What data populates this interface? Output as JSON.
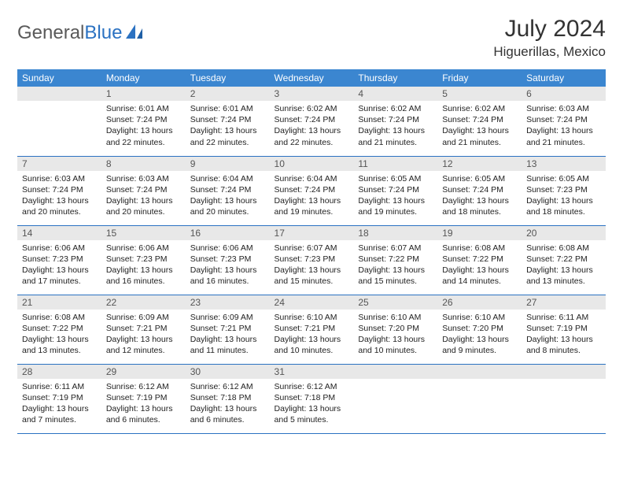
{
  "logo": {
    "word1": "General",
    "word2": "Blue"
  },
  "title": "July 2024",
  "location": "Higuerillas, Mexico",
  "day_headers": [
    "Sunday",
    "Monday",
    "Tuesday",
    "Wednesday",
    "Thursday",
    "Friday",
    "Saturday"
  ],
  "colors": {
    "header_bg": "#3b86d0",
    "header_fg": "#ffffff",
    "daynum_bg": "#e8e8e8",
    "row_border": "#2b72c2",
    "logo_gray": "#5a5a5a",
    "logo_blue": "#2b72c2"
  },
  "weeks": [
    [
      {
        "n": "",
        "sunrise": "",
        "sunset": "",
        "daylight": ""
      },
      {
        "n": "1",
        "sunrise": "Sunrise: 6:01 AM",
        "sunset": "Sunset: 7:24 PM",
        "daylight": "Daylight: 13 hours and 22 minutes."
      },
      {
        "n": "2",
        "sunrise": "Sunrise: 6:01 AM",
        "sunset": "Sunset: 7:24 PM",
        "daylight": "Daylight: 13 hours and 22 minutes."
      },
      {
        "n": "3",
        "sunrise": "Sunrise: 6:02 AM",
        "sunset": "Sunset: 7:24 PM",
        "daylight": "Daylight: 13 hours and 22 minutes."
      },
      {
        "n": "4",
        "sunrise": "Sunrise: 6:02 AM",
        "sunset": "Sunset: 7:24 PM",
        "daylight": "Daylight: 13 hours and 21 minutes."
      },
      {
        "n": "5",
        "sunrise": "Sunrise: 6:02 AM",
        "sunset": "Sunset: 7:24 PM",
        "daylight": "Daylight: 13 hours and 21 minutes."
      },
      {
        "n": "6",
        "sunrise": "Sunrise: 6:03 AM",
        "sunset": "Sunset: 7:24 PM",
        "daylight": "Daylight: 13 hours and 21 minutes."
      }
    ],
    [
      {
        "n": "7",
        "sunrise": "Sunrise: 6:03 AM",
        "sunset": "Sunset: 7:24 PM",
        "daylight": "Daylight: 13 hours and 20 minutes."
      },
      {
        "n": "8",
        "sunrise": "Sunrise: 6:03 AM",
        "sunset": "Sunset: 7:24 PM",
        "daylight": "Daylight: 13 hours and 20 minutes."
      },
      {
        "n": "9",
        "sunrise": "Sunrise: 6:04 AM",
        "sunset": "Sunset: 7:24 PM",
        "daylight": "Daylight: 13 hours and 20 minutes."
      },
      {
        "n": "10",
        "sunrise": "Sunrise: 6:04 AM",
        "sunset": "Sunset: 7:24 PM",
        "daylight": "Daylight: 13 hours and 19 minutes."
      },
      {
        "n": "11",
        "sunrise": "Sunrise: 6:05 AM",
        "sunset": "Sunset: 7:24 PM",
        "daylight": "Daylight: 13 hours and 19 minutes."
      },
      {
        "n": "12",
        "sunrise": "Sunrise: 6:05 AM",
        "sunset": "Sunset: 7:24 PM",
        "daylight": "Daylight: 13 hours and 18 minutes."
      },
      {
        "n": "13",
        "sunrise": "Sunrise: 6:05 AM",
        "sunset": "Sunset: 7:23 PM",
        "daylight": "Daylight: 13 hours and 18 minutes."
      }
    ],
    [
      {
        "n": "14",
        "sunrise": "Sunrise: 6:06 AM",
        "sunset": "Sunset: 7:23 PM",
        "daylight": "Daylight: 13 hours and 17 minutes."
      },
      {
        "n": "15",
        "sunrise": "Sunrise: 6:06 AM",
        "sunset": "Sunset: 7:23 PM",
        "daylight": "Daylight: 13 hours and 16 minutes."
      },
      {
        "n": "16",
        "sunrise": "Sunrise: 6:06 AM",
        "sunset": "Sunset: 7:23 PM",
        "daylight": "Daylight: 13 hours and 16 minutes."
      },
      {
        "n": "17",
        "sunrise": "Sunrise: 6:07 AM",
        "sunset": "Sunset: 7:23 PM",
        "daylight": "Daylight: 13 hours and 15 minutes."
      },
      {
        "n": "18",
        "sunrise": "Sunrise: 6:07 AM",
        "sunset": "Sunset: 7:22 PM",
        "daylight": "Daylight: 13 hours and 15 minutes."
      },
      {
        "n": "19",
        "sunrise": "Sunrise: 6:08 AM",
        "sunset": "Sunset: 7:22 PM",
        "daylight": "Daylight: 13 hours and 14 minutes."
      },
      {
        "n": "20",
        "sunrise": "Sunrise: 6:08 AM",
        "sunset": "Sunset: 7:22 PM",
        "daylight": "Daylight: 13 hours and 13 minutes."
      }
    ],
    [
      {
        "n": "21",
        "sunrise": "Sunrise: 6:08 AM",
        "sunset": "Sunset: 7:22 PM",
        "daylight": "Daylight: 13 hours and 13 minutes."
      },
      {
        "n": "22",
        "sunrise": "Sunrise: 6:09 AM",
        "sunset": "Sunset: 7:21 PM",
        "daylight": "Daylight: 13 hours and 12 minutes."
      },
      {
        "n": "23",
        "sunrise": "Sunrise: 6:09 AM",
        "sunset": "Sunset: 7:21 PM",
        "daylight": "Daylight: 13 hours and 11 minutes."
      },
      {
        "n": "24",
        "sunrise": "Sunrise: 6:10 AM",
        "sunset": "Sunset: 7:21 PM",
        "daylight": "Daylight: 13 hours and 10 minutes."
      },
      {
        "n": "25",
        "sunrise": "Sunrise: 6:10 AM",
        "sunset": "Sunset: 7:20 PM",
        "daylight": "Daylight: 13 hours and 10 minutes."
      },
      {
        "n": "26",
        "sunrise": "Sunrise: 6:10 AM",
        "sunset": "Sunset: 7:20 PM",
        "daylight": "Daylight: 13 hours and 9 minutes."
      },
      {
        "n": "27",
        "sunrise": "Sunrise: 6:11 AM",
        "sunset": "Sunset: 7:19 PM",
        "daylight": "Daylight: 13 hours and 8 minutes."
      }
    ],
    [
      {
        "n": "28",
        "sunrise": "Sunrise: 6:11 AM",
        "sunset": "Sunset: 7:19 PM",
        "daylight": "Daylight: 13 hours and 7 minutes."
      },
      {
        "n": "29",
        "sunrise": "Sunrise: 6:12 AM",
        "sunset": "Sunset: 7:19 PM",
        "daylight": "Daylight: 13 hours and 6 minutes."
      },
      {
        "n": "30",
        "sunrise": "Sunrise: 6:12 AM",
        "sunset": "Sunset: 7:18 PM",
        "daylight": "Daylight: 13 hours and 6 minutes."
      },
      {
        "n": "31",
        "sunrise": "Sunrise: 6:12 AM",
        "sunset": "Sunset: 7:18 PM",
        "daylight": "Daylight: 13 hours and 5 minutes."
      },
      {
        "n": "",
        "sunrise": "",
        "sunset": "",
        "daylight": ""
      },
      {
        "n": "",
        "sunrise": "",
        "sunset": "",
        "daylight": ""
      },
      {
        "n": "",
        "sunrise": "",
        "sunset": "",
        "daylight": ""
      }
    ]
  ]
}
